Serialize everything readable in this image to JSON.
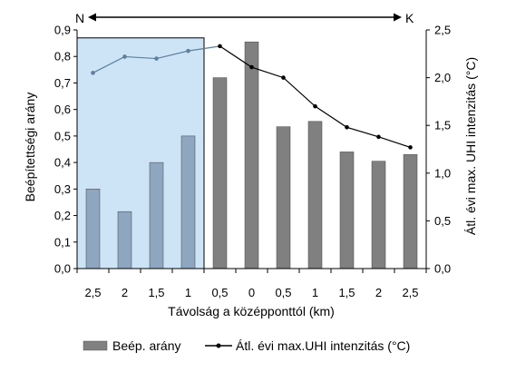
{
  "chart_data": {
    "type": "bar",
    "categories": [
      "2,5",
      "2",
      "1,5",
      "1",
      "0,5",
      "0",
      "0,5",
      "1",
      "1,5",
      "2",
      "2,5"
    ],
    "xlabel": "Távolság a középponttól (km)",
    "ylabel_left": "Beépítettségi arány",
    "ylabel_right": "Átl. évi max. UHI intenzitás (°C)",
    "ylim_left": [
      0,
      0.9
    ],
    "ylim_right": [
      0,
      2.5
    ],
    "yticks_left": [
      "0,0",
      "0,1",
      "0,2",
      "0,3",
      "0,4",
      "0,5",
      "0,6",
      "0,7",
      "0,8",
      "0,9"
    ],
    "yticks_right": [
      "0,0",
      "0,5",
      "1,0",
      "1,5",
      "2,0",
      "2,5"
    ],
    "direction_labels": {
      "left": "N",
      "right": "K"
    },
    "series": [
      {
        "name": "Beép. arány",
        "kind": "bar",
        "axis": "left",
        "color": "#808080",
        "highlight_color": "#8ea6c0",
        "values": [
          0.3,
          0.215,
          0.4,
          0.5,
          0.72,
          0.855,
          0.535,
          0.555,
          0.44,
          0.405,
          0.43
        ]
      },
      {
        "name": "Átl. évi max.UHI intenzitás (°C)",
        "kind": "line",
        "axis": "right",
        "color": "#000000",
        "highlight_color": "#5f7f9a",
        "values": [
          2.05,
          2.22,
          2.2,
          2.28,
          2.33,
          2.11,
          2.0,
          1.7,
          1.48,
          1.38,
          1.27
        ]
      }
    ],
    "highlight_region": {
      "from_category_index": 0,
      "to_category_index": 3,
      "top_value_left": 0.87,
      "color": "#cde4f7"
    },
    "legend_position": "bottom",
    "grid": false
  }
}
